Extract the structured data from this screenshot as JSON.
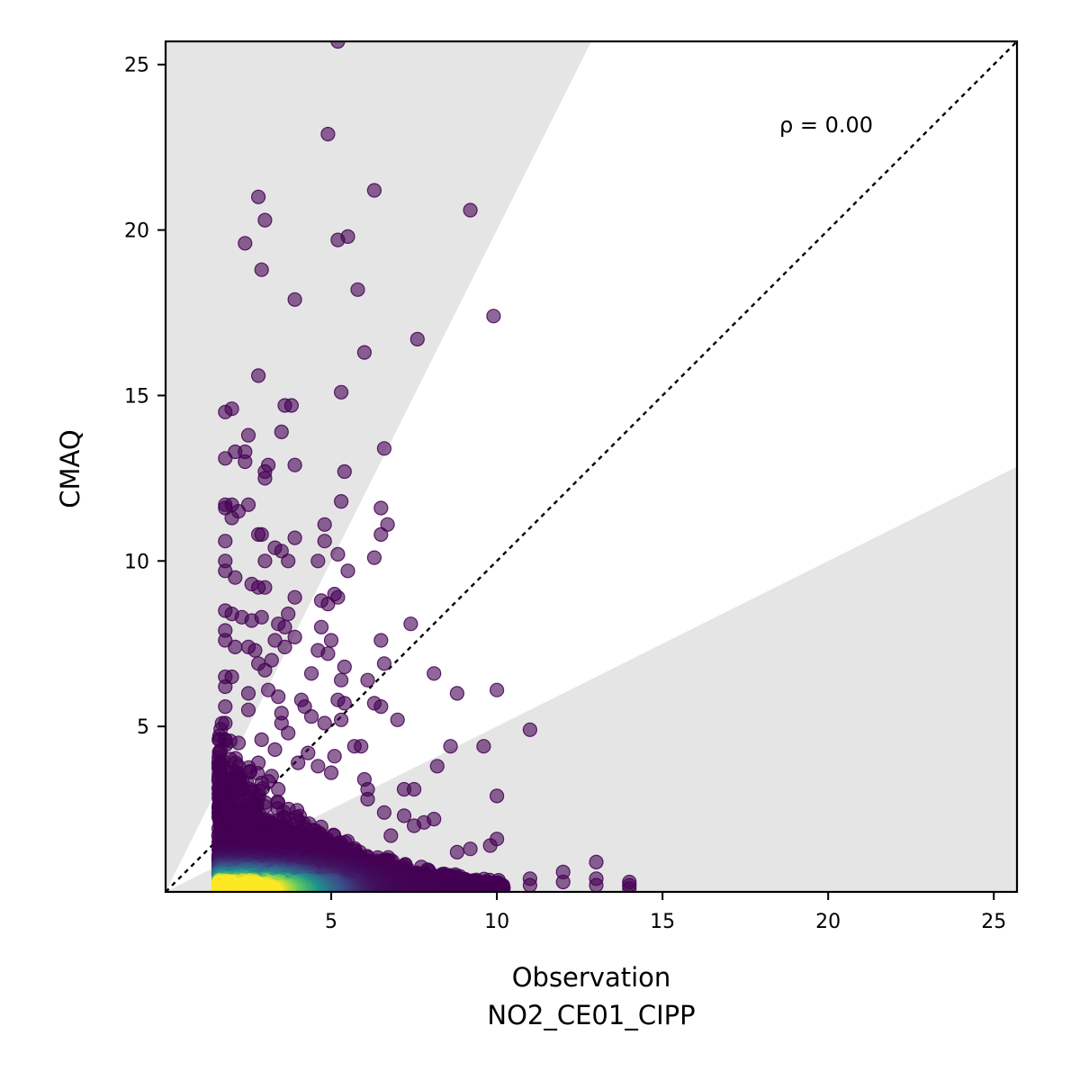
{
  "chart_data": {
    "type": "scatter",
    "xlabel": "Observation",
    "xlabel_sub": "NO2_CE01_CIPP",
    "ylabel": "CMAQ",
    "annotation": "ρ = 0.00",
    "xlim": [
      0,
      25.7
    ],
    "ylim": [
      0,
      25.7
    ],
    "xticks": [
      5,
      10,
      15,
      20,
      25
    ],
    "yticks": [
      5,
      10,
      15,
      20,
      25
    ],
    "reference_line": "1:1",
    "shaded_band": {
      "upper_slope": 2.0,
      "lower_slope": 0.5
    },
    "colormap": "viridis",
    "points_sparse": [
      [
        5.2,
        25.7
      ],
      [
        4.9,
        22.9
      ],
      [
        2.8,
        21.0
      ],
      [
        6.3,
        21.2
      ],
      [
        3.0,
        20.3
      ],
      [
        9.2,
        20.6
      ],
      [
        2.4,
        19.6
      ],
      [
        5.2,
        19.7
      ],
      [
        5.5,
        19.8
      ],
      [
        2.9,
        18.8
      ],
      [
        5.8,
        18.2
      ],
      [
        3.9,
        17.9
      ],
      [
        9.9,
        17.4
      ],
      [
        7.6,
        16.7
      ],
      [
        6.0,
        16.3
      ],
      [
        2.8,
        15.6
      ],
      [
        5.3,
        15.1
      ],
      [
        3.6,
        14.7
      ],
      [
        3.8,
        14.7
      ],
      [
        1.8,
        14.5
      ],
      [
        2.0,
        14.6
      ],
      [
        3.5,
        13.9
      ],
      [
        2.5,
        13.8
      ],
      [
        2.1,
        13.3
      ],
      [
        2.4,
        13.3
      ],
      [
        6.6,
        13.4
      ],
      [
        1.8,
        13.1
      ],
      [
        2.4,
        13.0
      ],
      [
        3.1,
        12.9
      ],
      [
        3.9,
        12.9
      ],
      [
        3.0,
        12.7
      ],
      [
        5.4,
        12.7
      ],
      [
        3.0,
        12.5
      ],
      [
        1.8,
        11.7
      ],
      [
        2.0,
        11.7
      ],
      [
        2.5,
        11.7
      ],
      [
        2.2,
        11.5
      ],
      [
        1.8,
        11.6
      ],
      [
        2.0,
        11.3
      ],
      [
        5.3,
        11.8
      ],
      [
        6.5,
        11.6
      ],
      [
        6.7,
        11.1
      ],
      [
        4.8,
        11.1
      ],
      [
        2.8,
        10.8
      ],
      [
        2.9,
        10.8
      ],
      [
        6.5,
        10.8
      ],
      [
        3.9,
        10.7
      ],
      [
        4.8,
        10.6
      ],
      [
        1.8,
        10.6
      ],
      [
        3.3,
        10.4
      ],
      [
        3.5,
        10.3
      ],
      [
        5.2,
        10.2
      ],
      [
        6.3,
        10.1
      ],
      [
        1.8,
        10.0
      ],
      [
        3.0,
        10.0
      ],
      [
        3.7,
        10.0
      ],
      [
        4.6,
        10.0
      ],
      [
        5.5,
        9.7
      ],
      [
        1.8,
        9.7
      ],
      [
        2.1,
        9.5
      ],
      [
        2.6,
        9.3
      ],
      [
        2.8,
        9.2
      ],
      [
        3.0,
        9.2
      ],
      [
        3.9,
        8.9
      ],
      [
        5.1,
        9.0
      ],
      [
        5.2,
        8.9
      ],
      [
        4.7,
        8.8
      ],
      [
        4.9,
        8.7
      ],
      [
        1.8,
        8.5
      ],
      [
        2.0,
        8.4
      ],
      [
        3.7,
        8.4
      ],
      [
        2.3,
        8.3
      ],
      [
        2.6,
        8.2
      ],
      [
        2.9,
        8.3
      ],
      [
        3.4,
        8.1
      ],
      [
        3.6,
        8.0
      ],
      [
        4.7,
        8.0
      ],
      [
        7.4,
        8.1
      ],
      [
        1.8,
        7.9
      ],
      [
        1.8,
        7.6
      ],
      [
        2.1,
        7.4
      ],
      [
        2.5,
        7.4
      ],
      [
        3.3,
        7.6
      ],
      [
        3.9,
        7.7
      ],
      [
        5.0,
        7.6
      ],
      [
        6.5,
        7.6
      ],
      [
        2.7,
        7.3
      ],
      [
        3.6,
        7.4
      ],
      [
        4.6,
        7.3
      ],
      [
        4.9,
        7.2
      ],
      [
        3.2,
        7.0
      ],
      [
        2.8,
        6.9
      ],
      [
        6.6,
        6.9
      ],
      [
        5.4,
        6.8
      ],
      [
        1.8,
        6.5
      ],
      [
        2.0,
        6.5
      ],
      [
        3.0,
        6.7
      ],
      [
        4.4,
        6.6
      ],
      [
        5.3,
        6.4
      ],
      [
        6.1,
        6.4
      ],
      [
        8.1,
        6.6
      ],
      [
        1.8,
        6.2
      ],
      [
        3.1,
        6.1
      ],
      [
        10.0,
        6.1
      ],
      [
        8.8,
        6.0
      ],
      [
        2.5,
        6.0
      ],
      [
        3.4,
        5.9
      ],
      [
        4.1,
        5.8
      ],
      [
        4.2,
        5.6
      ],
      [
        5.2,
        5.8
      ],
      [
        5.4,
        5.7
      ],
      [
        6.3,
        5.7
      ],
      [
        6.5,
        5.6
      ],
      [
        1.8,
        5.6
      ],
      [
        2.5,
        5.5
      ],
      [
        3.5,
        5.4
      ],
      [
        4.4,
        5.3
      ],
      [
        5.3,
        5.2
      ],
      [
        7.0,
        5.2
      ],
      [
        4.8,
        5.1
      ],
      [
        1.8,
        5.1
      ],
      [
        3.5,
        5.1
      ],
      [
        11.0,
        4.9
      ],
      [
        3.7,
        4.8
      ],
      [
        5.7,
        4.4
      ],
      [
        5.9,
        4.4
      ],
      [
        8.6,
        4.4
      ],
      [
        9.6,
        4.4
      ],
      [
        1.8,
        4.6
      ],
      [
        2.2,
        4.5
      ],
      [
        2.9,
        4.6
      ],
      [
        3.3,
        4.3
      ],
      [
        4.3,
        4.2
      ],
      [
        5.1,
        4.1
      ],
      [
        2.2,
        3.8
      ],
      [
        2.8,
        3.9
      ],
      [
        4.0,
        3.9
      ],
      [
        4.6,
        3.8
      ],
      [
        5.0,
        3.6
      ],
      [
        6.0,
        3.4
      ],
      [
        8.2,
        3.8
      ],
      [
        6.1,
        3.1
      ],
      [
        3.2,
        3.5
      ],
      [
        3.4,
        3.1
      ],
      [
        7.2,
        3.1
      ],
      [
        7.5,
        3.1
      ],
      [
        10.0,
        2.9
      ],
      [
        6.1,
        2.8
      ],
      [
        6.6,
        2.4
      ],
      [
        7.2,
        2.3
      ],
      [
        7.5,
        2.0
      ],
      [
        7.8,
        2.1
      ],
      [
        8.1,
        2.2
      ],
      [
        6.8,
        1.7
      ],
      [
        8.8,
        1.2
      ],
      [
        9.2,
        1.3
      ],
      [
        9.8,
        1.4
      ],
      [
        10.0,
        1.6
      ],
      [
        11.0,
        0.4
      ],
      [
        11.0,
        0.2
      ],
      [
        12.0,
        0.6
      ],
      [
        12.0,
        0.3
      ],
      [
        13.0,
        0.9
      ],
      [
        13.0,
        0.4
      ],
      [
        13.0,
        0.2
      ],
      [
        14.0,
        0.3
      ],
      [
        14.0,
        0.2
      ],
      [
        14.0,
        0.1
      ]
    ]
  }
}
